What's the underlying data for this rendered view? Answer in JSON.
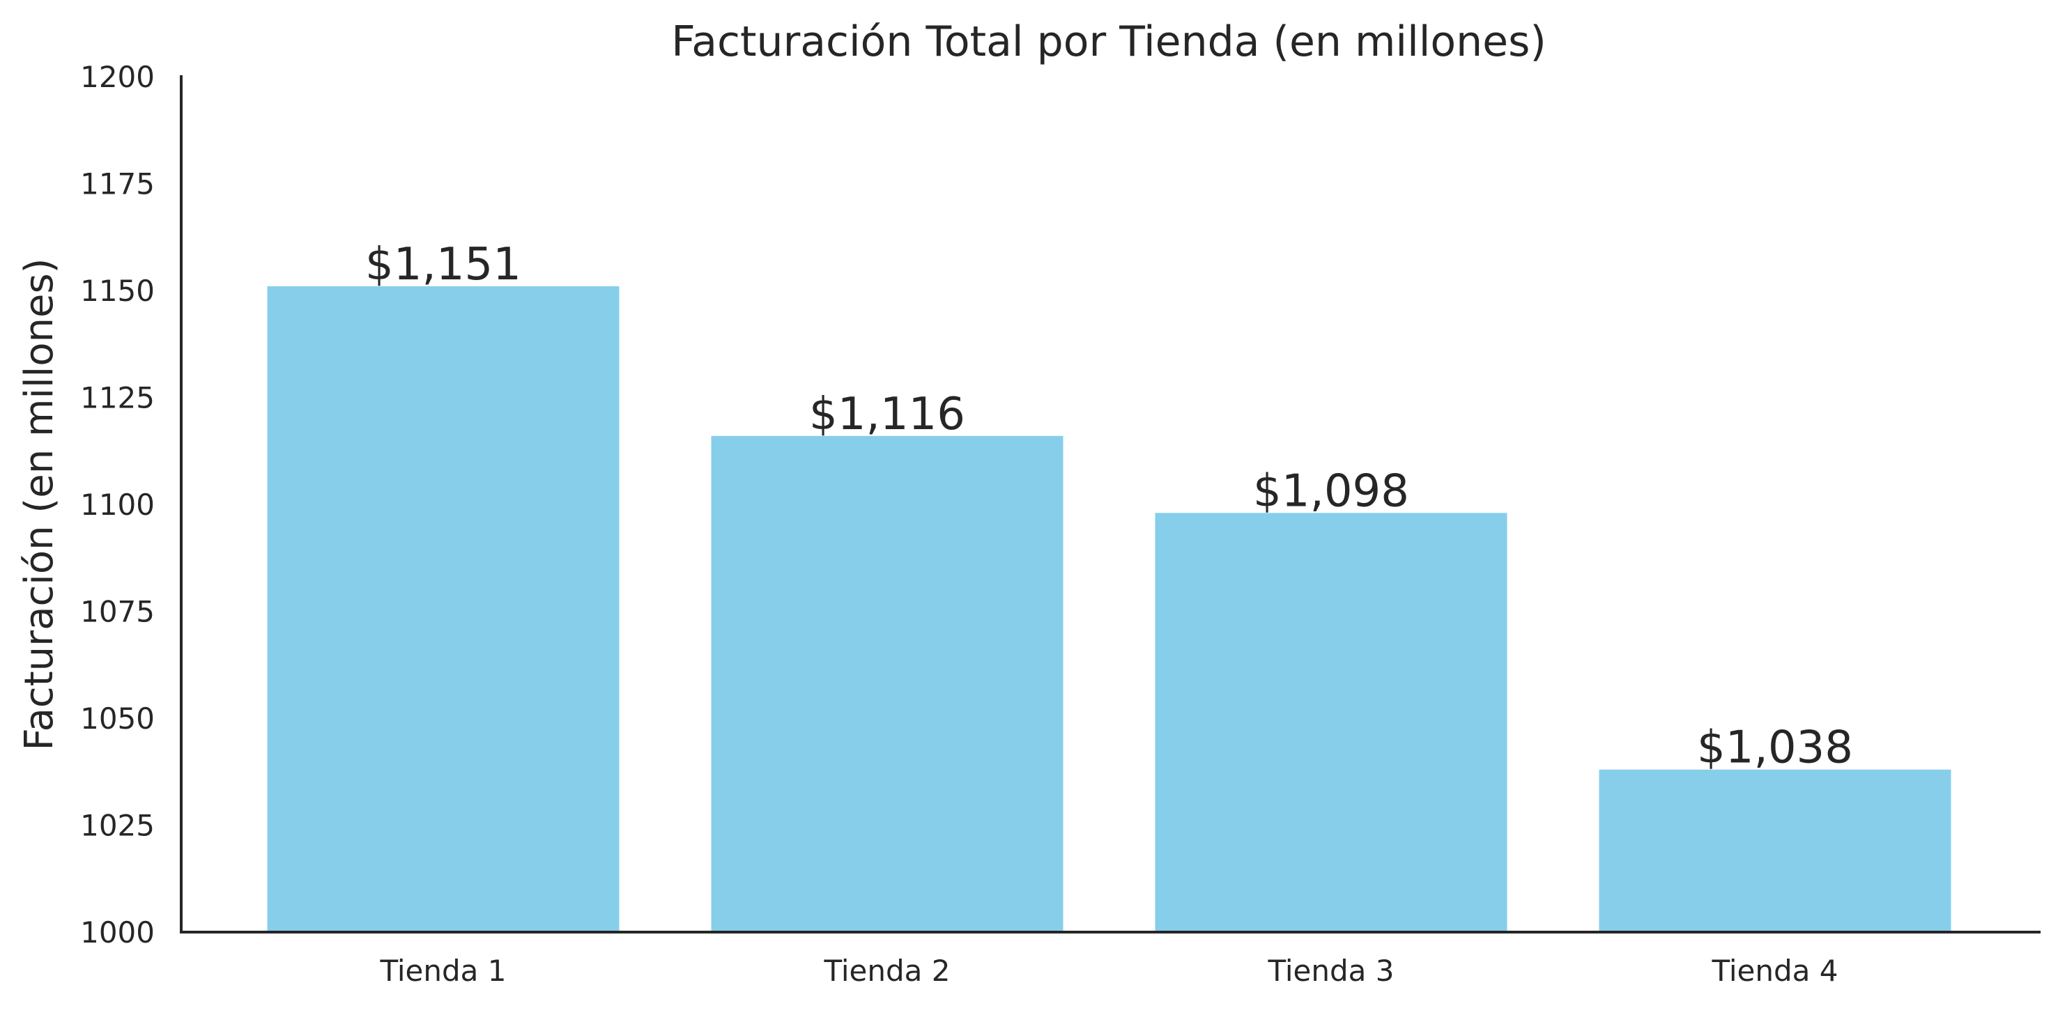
{
  "chart_data": {
    "type": "bar",
    "title": "Facturación Total por Tienda (en millones)",
    "xlabel": "",
    "ylabel": "Facturación (en millones)",
    "categories": [
      "Tienda 1",
      "Tienda 2",
      "Tienda 3",
      "Tienda 4"
    ],
    "values": [
      1151,
      1116,
      1098,
      1038
    ],
    "value_labels": [
      "$1,151",
      "$1,116",
      "$1,098",
      "$1,038"
    ],
    "ylim": [
      1000,
      1200
    ],
    "yticks": [
      "1000",
      "1025",
      "1050",
      "1075",
      "1100",
      "1125",
      "1150",
      "1175",
      "1200"
    ],
    "grid": false,
    "legend": "none",
    "bar_color": "#87CEEB",
    "text_color": "#262626"
  }
}
